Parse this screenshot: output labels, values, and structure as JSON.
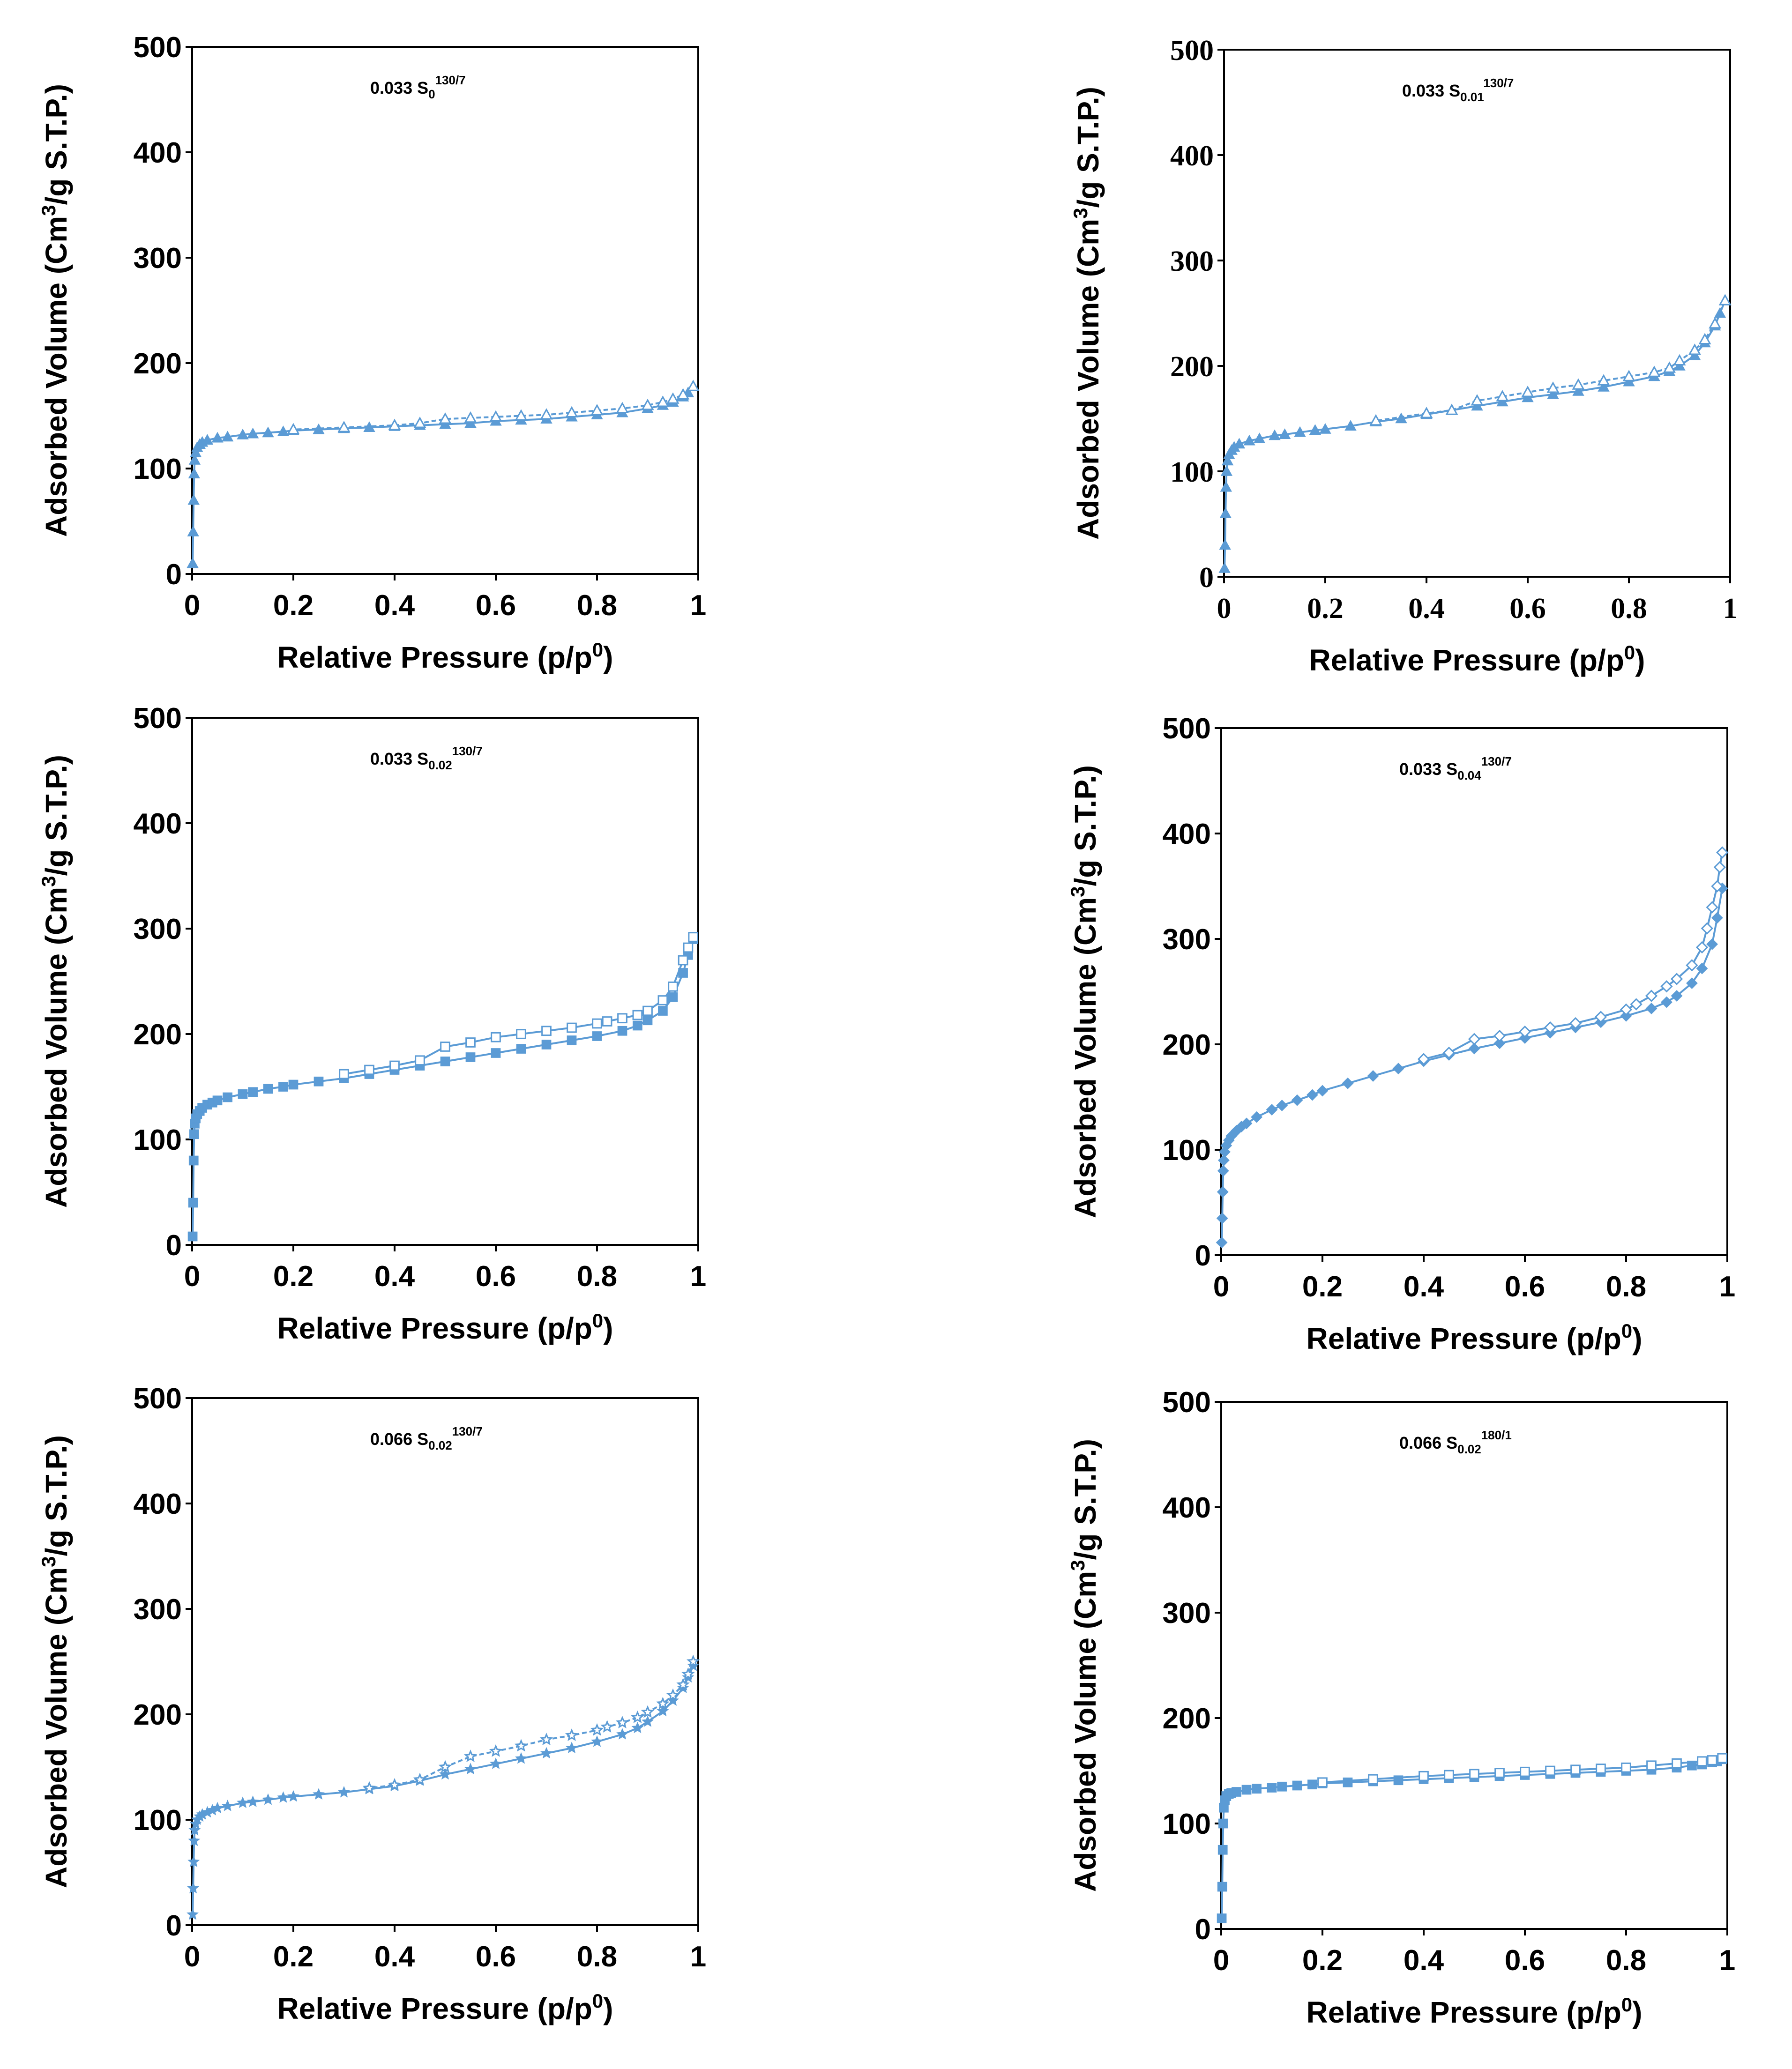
{
  "colors": {
    "series": "#5B9BD5",
    "axis": "#000000",
    "background": "#ffffff"
  },
  "chart_data": [
    {
      "type": "line",
      "title": "0.033 S",
      "title_subscript": "0",
      "title_superscript": "130/7",
      "xlabel": "Relative Pressure (p/p",
      "xlabel_sup": "0",
      "xlabel_close": ")",
      "ylabel": "Adsorbed Volume (Cm",
      "ylabel_sup": "3",
      "ylabel_close": "/g S.T.P.)",
      "xlim": [
        0,
        1
      ],
      "ylim": [
        0,
        500
      ],
      "xticks": [
        "0",
        "0.2",
        "0.4",
        "0.6",
        "0.8",
        "1"
      ],
      "yticks": [
        "0",
        "100",
        "200",
        "300",
        "400",
        "500"
      ],
      "marker": "triangle",
      "series": [
        {
          "name": "adsorption",
          "x": [
            0.001,
            0.002,
            0.003,
            0.004,
            0.005,
            0.007,
            0.01,
            0.015,
            0.02,
            0.03,
            0.05,
            0.07,
            0.1,
            0.12,
            0.15,
            0.18,
            0.2,
            0.25,
            0.3,
            0.35,
            0.4,
            0.45,
            0.5,
            0.55,
            0.6,
            0.65,
            0.7,
            0.75,
            0.8,
            0.85,
            0.9,
            0.93,
            0.95,
            0.97,
            0.98,
            0.99
          ],
          "y": [
            10,
            40,
            70,
            95,
            108,
            115,
            120,
            123,
            125,
            127,
            129,
            130,
            132,
            133,
            134,
            135,
            136,
            137,
            138,
            139,
            140,
            141,
            142,
            143,
            145,
            146,
            147,
            149,
            151,
            153,
            157,
            160,
            163,
            168,
            172,
            178
          ]
        },
        {
          "name": "desorption",
          "x": [
            0.99,
            0.97,
            0.95,
            0.93,
            0.9,
            0.85,
            0.8,
            0.75,
            0.7,
            0.65,
            0.6,
            0.55,
            0.5,
            0.45,
            0.4,
            0.3,
            0.2
          ],
          "y": [
            178,
            170,
            166,
            163,
            160,
            157,
            155,
            153,
            151,
            150,
            149,
            148,
            147,
            143,
            141,
            139,
            137
          ]
        }
      ]
    },
    {
      "type": "line",
      "title": "0.033 S",
      "title_subscript": "0.01",
      "title_superscript": "130/7",
      "xlabel": "Relative Pressure (p/p",
      "xlabel_sup": "0",
      "xlabel_close": ")",
      "ylabel": "Adsorbed Volume (Cm",
      "ylabel_sup": "3",
      "ylabel_close": "/g S.T.P.)",
      "xlim": [
        0,
        1
      ],
      "ylim": [
        0,
        500
      ],
      "xticks": [
        "0",
        "0.2",
        "0.4",
        "0.6",
        "0.8",
        "1"
      ],
      "yticks": [
        "0",
        "100",
        "200",
        "300",
        "400",
        "500"
      ],
      "marker": "triangle",
      "series": [
        {
          "name": "adsorption",
          "x": [
            0.001,
            0.002,
            0.003,
            0.004,
            0.005,
            0.007,
            0.01,
            0.015,
            0.02,
            0.03,
            0.05,
            0.07,
            0.1,
            0.12,
            0.15,
            0.18,
            0.2,
            0.25,
            0.3,
            0.35,
            0.4,
            0.45,
            0.5,
            0.55,
            0.6,
            0.65,
            0.7,
            0.75,
            0.8,
            0.85,
            0.88,
            0.9,
            0.93,
            0.95,
            0.97,
            0.98,
            0.99
          ],
          "y": [
            8,
            30,
            60,
            85,
            100,
            110,
            116,
            120,
            123,
            126,
            129,
            131,
            134,
            135,
            137,
            139,
            140,
            143,
            147,
            150,
            154,
            158,
            162,
            166,
            170,
            173,
            176,
            180,
            185,
            190,
            195,
            200,
            210,
            222,
            238,
            250,
            262
          ]
        },
        {
          "name": "desorption",
          "x": [
            0.99,
            0.97,
            0.95,
            0.93,
            0.9,
            0.88,
            0.85,
            0.8,
            0.75,
            0.7,
            0.65,
            0.6,
            0.55,
            0.5,
            0.45,
            0.4,
            0.3
          ],
          "y": [
            262,
            240,
            225,
            215,
            205,
            198,
            194,
            190,
            186,
            182,
            179,
            175,
            171,
            167,
            158,
            155,
            148
          ]
        }
      ]
    },
    {
      "type": "line",
      "title": "0.033 S",
      "title_subscript": "0.02",
      "title_superscript": "130/7",
      "xlabel": "Relative Pressure (p/p",
      "xlabel_sup": "0",
      "xlabel_close": ")",
      "ylabel": "Adsorbed Volume (Cm",
      "ylabel_sup": "3",
      "ylabel_close": "/g S.T.P.)",
      "xlim": [
        0,
        1
      ],
      "ylim": [
        0,
        500
      ],
      "xticks": [
        "0",
        "0.2",
        "0.4",
        "0.6",
        "0.8",
        "1"
      ],
      "yticks": [
        "0",
        "100",
        "200",
        "300",
        "400",
        "500"
      ],
      "marker": "square",
      "series": [
        {
          "name": "adsorption",
          "x": [
            0.001,
            0.002,
            0.003,
            0.004,
            0.005,
            0.007,
            0.01,
            0.015,
            0.02,
            0.03,
            0.04,
            0.05,
            0.07,
            0.1,
            0.12,
            0.15,
            0.18,
            0.2,
            0.25,
            0.3,
            0.35,
            0.4,
            0.45,
            0.5,
            0.55,
            0.6,
            0.65,
            0.7,
            0.75,
            0.8,
            0.85,
            0.88,
            0.9,
            0.93,
            0.95,
            0.97,
            0.98,
            0.99
          ],
          "y": [
            8,
            40,
            80,
            105,
            115,
            120,
            124,
            127,
            130,
            133,
            135,
            137,
            140,
            143,
            145,
            148,
            150,
            152,
            155,
            158,
            162,
            166,
            170,
            174,
            178,
            182,
            186,
            190,
            194,
            198,
            203,
            208,
            213,
            222,
            235,
            258,
            275,
            290
          ]
        },
        {
          "name": "desorption",
          "x": [
            0.99,
            0.98,
            0.97,
            0.95,
            0.93,
            0.9,
            0.88,
            0.85,
            0.82,
            0.8,
            0.75,
            0.7,
            0.65,
            0.6,
            0.55,
            0.5,
            0.45,
            0.4,
            0.35,
            0.3
          ],
          "y": [
            292,
            282,
            270,
            245,
            232,
            222,
            218,
            215,
            212,
            210,
            206,
            203,
            200,
            197,
            192,
            188,
            175,
            170,
            166,
            162
          ]
        }
      ]
    },
    {
      "type": "line",
      "title": "0.033 S",
      "title_subscript": "0.04",
      "title_superscript": "130/7",
      "xlabel": "Relative Pressure (p/p",
      "xlabel_sup": "0",
      "xlabel_close": ")",
      "ylabel": "Adsorbed Volume (Cm",
      "ylabel_sup": "3",
      "ylabel_close": "/g S.T.P.)",
      "xlim": [
        0,
        1
      ],
      "ylim": [
        0,
        500
      ],
      "xticks": [
        "0",
        "0.2",
        "0.4",
        "0.6",
        "0.8",
        "1"
      ],
      "yticks": [
        "0",
        "100",
        "200",
        "300",
        "400",
        "500"
      ],
      "marker": "diamond",
      "series": [
        {
          "name": "adsorption",
          "x": [
            0.001,
            0.002,
            0.003,
            0.004,
            0.005,
            0.007,
            0.01,
            0.015,
            0.02,
            0.03,
            0.04,
            0.05,
            0.07,
            0.1,
            0.12,
            0.15,
            0.18,
            0.2,
            0.25,
            0.3,
            0.35,
            0.4,
            0.45,
            0.5,
            0.55,
            0.6,
            0.65,
            0.7,
            0.75,
            0.8,
            0.85,
            0.88,
            0.9,
            0.93,
            0.95,
            0.97,
            0.98,
            0.99
          ],
          "y": [
            12,
            35,
            60,
            80,
            90,
            98,
            104,
            109,
            113,
            118,
            122,
            125,
            131,
            138,
            142,
            147,
            152,
            156,
            163,
            170,
            177,
            184,
            190,
            196,
            201,
            206,
            211,
            216,
            221,
            227,
            234,
            240,
            246,
            258,
            272,
            295,
            320,
            348
          ]
        },
        {
          "name": "desorption",
          "x": [
            0.99,
            0.985,
            0.98,
            0.97,
            0.96,
            0.95,
            0.93,
            0.9,
            0.88,
            0.85,
            0.82,
            0.8,
            0.75,
            0.7,
            0.65,
            0.6,
            0.55,
            0.5,
            0.45,
            0.4
          ],
          "y": [
            382,
            368,
            350,
            330,
            310,
            292,
            275,
            262,
            255,
            246,
            238,
            233,
            226,
            220,
            216,
            212,
            208,
            205,
            192,
            186
          ]
        }
      ]
    },
    {
      "type": "line",
      "title": "0.066 S",
      "title_subscript": "0.02",
      "title_superscript": "130/7",
      "xlabel": "Relative Pressure (p/p",
      "xlabel_sup": "0",
      "xlabel_close": ")",
      "ylabel": "Adsorbed Volume (Cm",
      "ylabel_sup": "3",
      "ylabel_close": "/g S.T.P.)",
      "xlim": [
        0,
        1
      ],
      "ylim": [
        0,
        500
      ],
      "xticks": [
        "0",
        "0.2",
        "0.4",
        "0.6",
        "0.8",
        "1"
      ],
      "yticks": [
        "0",
        "100",
        "200",
        "300",
        "400",
        "500"
      ],
      "marker": "star",
      "series": [
        {
          "name": "adsorption",
          "x": [
            0.001,
            0.002,
            0.003,
            0.004,
            0.005,
            0.007,
            0.01,
            0.015,
            0.02,
            0.03,
            0.04,
            0.05,
            0.07,
            0.1,
            0.12,
            0.15,
            0.18,
            0.2,
            0.25,
            0.3,
            0.35,
            0.4,
            0.45,
            0.5,
            0.55,
            0.6,
            0.65,
            0.7,
            0.75,
            0.8,
            0.85,
            0.88,
            0.9,
            0.93,
            0.95,
            0.97,
            0.98,
            0.99
          ],
          "y": [
            10,
            35,
            60,
            80,
            90,
            96,
            100,
            103,
            105,
            107,
            109,
            111,
            113,
            116,
            117,
            119,
            121,
            122,
            124,
            126,
            129,
            132,
            137,
            143,
            148,
            153,
            158,
            163,
            168,
            174,
            181,
            187,
            193,
            203,
            213,
            225,
            235,
            246
          ]
        },
        {
          "name": "desorption",
          "x": [
            0.99,
            0.98,
            0.97,
            0.95,
            0.93,
            0.9,
            0.88,
            0.85,
            0.82,
            0.8,
            0.75,
            0.7,
            0.65,
            0.6,
            0.55,
            0.5,
            0.45,
            0.4,
            0.35
          ],
          "y": [
            250,
            238,
            228,
            218,
            210,
            202,
            197,
            192,
            188,
            185,
            180,
            176,
            170,
            165,
            160,
            150,
            138,
            133,
            130
          ]
        }
      ]
    },
    {
      "type": "line",
      "title": "0.066 S",
      "title_subscript": "0.02",
      "title_superscript": "180/1",
      "xlabel": "Relative Pressure (p/p",
      "xlabel_sup": "0",
      "xlabel_close": ")",
      "ylabel": "Adsorbed Volume (Cm",
      "ylabel_sup": "3",
      "ylabel_close": "/g S.T.P.)",
      "xlim": [
        0,
        1
      ],
      "ylim": [
        0,
        500
      ],
      "xticks": [
        "0",
        "0.2",
        "0.4",
        "0.6",
        "0.8",
        "1"
      ],
      "yticks": [
        "0",
        "100",
        "200",
        "300",
        "400",
        "500"
      ],
      "marker": "square",
      "series": [
        {
          "name": "adsorption",
          "x": [
            0.001,
            0.002,
            0.003,
            0.004,
            0.005,
            0.007,
            0.01,
            0.015,
            0.02,
            0.03,
            0.05,
            0.07,
            0.1,
            0.12,
            0.15,
            0.18,
            0.2,
            0.25,
            0.3,
            0.35,
            0.4,
            0.45,
            0.5,
            0.55,
            0.6,
            0.65,
            0.7,
            0.75,
            0.8,
            0.85,
            0.9,
            0.93,
            0.95,
            0.97,
            0.98,
            0.99
          ],
          "y": [
            10,
            40,
            75,
            100,
            115,
            122,
            126,
            128,
            129,
            130,
            132,
            133,
            134,
            135,
            136,
            137,
            138,
            139,
            140,
            141,
            142,
            143,
            144,
            145,
            146,
            147,
            148,
            149,
            150,
            151,
            153,
            155,
            156,
            158,
            159,
            161
          ]
        },
        {
          "name": "desorption",
          "x": [
            0.99,
            0.97,
            0.95,
            0.9,
            0.85,
            0.8,
            0.75,
            0.7,
            0.65,
            0.6,
            0.55,
            0.5,
            0.45,
            0.4,
            0.3,
            0.2
          ],
          "y": [
            162,
            160,
            159,
            157,
            155,
            153,
            152,
            151,
            150,
            149,
            148,
            147,
            146,
            145,
            142,
            139
          ]
        }
      ]
    }
  ]
}
